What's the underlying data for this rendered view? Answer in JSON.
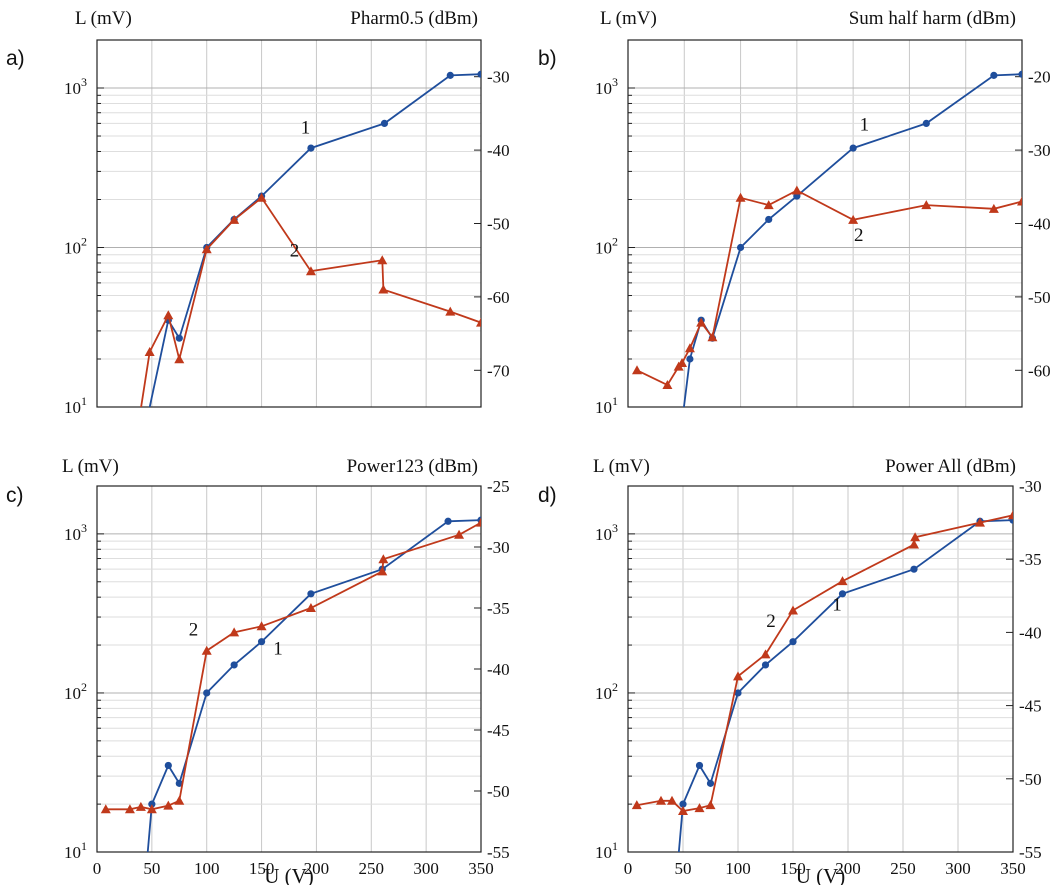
{
  "chart_data": [
    {
      "type": "line",
      "panel": "a)",
      "ylabel_left": "L (mV)",
      "ylabel_right": "Pharm0.5 (dBm)",
      "xlabel": "",
      "xlim": [
        0,
        350
      ],
      "x_gridlines": [
        50,
        100,
        150,
        200,
        250,
        300
      ],
      "x_ticks": [],
      "ylim_left": [
        10,
        2000
      ],
      "yscale_left": "log",
      "y_ticks_left": [
        {
          "value": 10,
          "base": "10",
          "exp": "1"
        },
        {
          "value": 100,
          "base": "10",
          "exp": "2"
        },
        {
          "value": 1000,
          "base": "10",
          "exp": "3"
        }
      ],
      "ylim_right": [
        -75,
        -25
      ],
      "y_ticks_right": [
        "-70",
        "-60",
        "-50",
        "-40",
        "-30"
      ],
      "grid": true,
      "series": [
        {
          "name": "1",
          "axis": "left",
          "color": "#1f4e9c",
          "marker": "circle",
          "x": [
            45,
            65,
            75,
            100,
            125,
            150,
            195,
            262,
            322,
            350
          ],
          "y": [
            8,
            35,
            27,
            100,
            150,
            210,
            420,
            600,
            1200,
            1220
          ]
        },
        {
          "name": "2",
          "axis": "right",
          "color": "#c0391b",
          "marker": "triangle",
          "x": [
            35,
            48,
            65,
            75,
            100,
            125,
            150,
            195,
            260,
            261,
            322,
            350
          ],
          "y": [
            -80,
            -67.5,
            -62.5,
            -68.5,
            -53.5,
            -49.5,
            -46.5,
            -56.5,
            -55,
            -59,
            -62,
            -63.5
          ]
        }
      ],
      "annotations": [
        {
          "text": "1",
          "x": 190,
          "y": 520
        },
        {
          "text": "2",
          "x": 180,
          "y": 88
        }
      ]
    },
    {
      "type": "line",
      "panel": "b)",
      "ylabel_left": "L (mV)",
      "ylabel_right": "Sum half harm (dBm)",
      "xlabel": "",
      "xlim": [
        0,
        350
      ],
      "x_gridlines": [
        50,
        100,
        150,
        200,
        250,
        300
      ],
      "x_ticks": [],
      "ylim_left": [
        10,
        2000
      ],
      "yscale_left": "log",
      "y_ticks_left": [
        {
          "value": 10,
          "base": "10",
          "exp": "1"
        },
        {
          "value": 100,
          "base": "10",
          "exp": "2"
        },
        {
          "value": 1000,
          "base": "10",
          "exp": "3"
        }
      ],
      "ylim_right": [
        -65,
        -15
      ],
      "y_ticks_right": [
        "-60",
        "-50",
        "-40",
        "-30",
        "-20"
      ],
      "grid": true,
      "series": [
        {
          "name": "1",
          "axis": "left",
          "color": "#1f4e9c",
          "marker": "circle",
          "x": [
            48,
            55,
            65,
            75,
            100,
            125,
            150,
            200,
            265,
            325,
            350
          ],
          "y": [
            8,
            20,
            35,
            27,
            100,
            150,
            210,
            420,
            600,
            1200,
            1220
          ]
        },
        {
          "name": "2",
          "axis": "right",
          "color": "#c0391b",
          "marker": "triangle",
          "x": [
            8,
            35,
            45,
            48,
            55,
            65,
            75,
            100,
            125,
            150,
            200,
            265,
            325,
            350
          ],
          "y": [
            -60,
            -62,
            -59.5,
            -59,
            -57,
            -53.5,
            -55.5,
            -36.5,
            -37.5,
            -35.5,
            -39.5,
            -37.5,
            -38,
            -37
          ]
        }
      ],
      "annotations": [
        {
          "text": "1",
          "x": 210,
          "y": 540
        },
        {
          "text": "2",
          "x": 205,
          "y": 110
        }
      ]
    },
    {
      "type": "line",
      "panel": "c)",
      "ylabel_left": "L (mV)",
      "ylabel_right": "Power123 (dBm)",
      "xlabel": "U (V)",
      "xlim": [
        0,
        350
      ],
      "x_gridlines": [
        50,
        100,
        150,
        200,
        250,
        300
      ],
      "x_ticks": [
        "0",
        "50",
        "100",
        "150",
        "200",
        "250",
        "300",
        "350"
      ],
      "ylim_left": [
        10,
        2000
      ],
      "yscale_left": "log",
      "y_ticks_left": [
        {
          "value": 10,
          "base": "10",
          "exp": "1"
        },
        {
          "value": 100,
          "base": "10",
          "exp": "2"
        },
        {
          "value": 1000,
          "base": "10",
          "exp": "3"
        }
      ],
      "ylim_right": [
        -55,
        -25
      ],
      "y_ticks_right": [
        "-55",
        "-50",
        "-45",
        "-40",
        "-35",
        "-30",
        "-25"
      ],
      "grid": true,
      "series": [
        {
          "name": "1",
          "axis": "left",
          "color": "#1f4e9c",
          "marker": "circle",
          "x": [
            45,
            50,
            65,
            75,
            100,
            125,
            150,
            195,
            260,
            320,
            350
          ],
          "y": [
            8,
            20,
            35,
            27,
            100,
            150,
            210,
            420,
            600,
            1200,
            1220
          ]
        },
        {
          "name": "2",
          "axis": "right",
          "color": "#c0391b",
          "marker": "triangle",
          "x": [
            8,
            30,
            40,
            50,
            65,
            75,
            100,
            125,
            150,
            195,
            260,
            261,
            330,
            350
          ],
          "y": [
            -51.5,
            -51.5,
            -51.3,
            -51.5,
            -51.2,
            -50.8,
            -38.5,
            -37,
            -36.5,
            -35,
            -32,
            -31,
            -29,
            -28
          ]
        }
      ],
      "annotations": [
        {
          "text": "1",
          "x": 165,
          "y": 175
        },
        {
          "text": "2",
          "x": 88,
          "y": 230
        }
      ]
    },
    {
      "type": "line",
      "panel": "d)",
      "ylabel_left": "L (mV)",
      "ylabel_right": "Power All (dBm)",
      "xlabel": "U (V)",
      "xlim": [
        0,
        350
      ],
      "x_gridlines": [
        50,
        100,
        150,
        200,
        250,
        300
      ],
      "x_ticks": [
        "0",
        "50",
        "100",
        "150",
        "200",
        "250",
        "300",
        "350"
      ],
      "ylim_left": [
        10,
        2000
      ],
      "yscale_left": "log",
      "y_ticks_left": [
        {
          "value": 10,
          "base": "10",
          "exp": "1"
        },
        {
          "value": 100,
          "base": "10",
          "exp": "2"
        },
        {
          "value": 1000,
          "base": "10",
          "exp": "3"
        }
      ],
      "ylim_right": [
        -55,
        -30
      ],
      "y_ticks_right": [
        "-55",
        "-50",
        "-45",
        "-40",
        "-35",
        "-30"
      ],
      "grid": true,
      "series": [
        {
          "name": "1",
          "axis": "left",
          "color": "#1f4e9c",
          "marker": "circle",
          "x": [
            45,
            50,
            65,
            75,
            100,
            125,
            150,
            195,
            260,
            320,
            350
          ],
          "y": [
            8,
            20,
            35,
            27,
            100,
            150,
            210,
            420,
            600,
            1200,
            1220
          ]
        },
        {
          "name": "2",
          "axis": "right",
          "color": "#c0391b",
          "marker": "triangle",
          "x": [
            8,
            30,
            40,
            50,
            65,
            75,
            100,
            125,
            150,
            195,
            260,
            261,
            320,
            350
          ],
          "y": [
            -51.8,
            -51.5,
            -51.5,
            -52.2,
            -52,
            -51.8,
            -43,
            -41.5,
            -38.5,
            -36.5,
            -34,
            -33.5,
            -32.5,
            -32
          ]
        }
      ],
      "annotations": [
        {
          "text": "1",
          "x": 190,
          "y": 330
        },
        {
          "text": "2",
          "x": 130,
          "y": 260
        }
      ]
    }
  ]
}
